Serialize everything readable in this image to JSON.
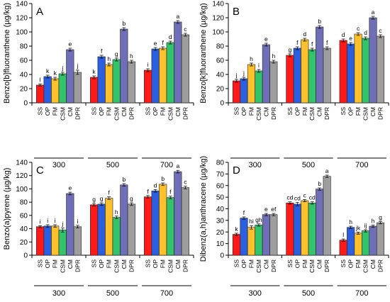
{
  "colors": {
    "SS": "#ff1a1a",
    "OP": "#2b5fe0",
    "FM": "#ffc12b",
    "CSM": "#33c46b",
    "CM": "#6f6fb8",
    "DPR": "#9e9e9e"
  },
  "chart_data": [
    {
      "type": "bar",
      "panel": "A",
      "ylabel": "Benzo[b]fluoranthene (µg/kg)",
      "ylim": [
        0,
        140
      ],
      "yticks": [
        0,
        20,
        40,
        60,
        80,
        100,
        120,
        140
      ],
      "categories": [
        "SS",
        "OP",
        "FM",
        "CSM",
        "CM",
        "DPR"
      ],
      "groups": [
        "300",
        "500",
        "700"
      ],
      "values": [
        [
          25,
          37,
          34,
          41,
          75,
          43
        ],
        [
          36,
          65,
          54,
          61,
          104,
          58
        ],
        [
          46,
          76,
          77,
          85,
          114,
          96
        ]
      ],
      "errors": [
        [
          1.5,
          2,
          2,
          2,
          2,
          3
        ],
        [
          2,
          2,
          2,
          2,
          2,
          2
        ],
        [
          2,
          2,
          2,
          2,
          2,
          2
        ]
      ],
      "letters": [
        [
          "l",
          "k",
          "k",
          "j",
          "e",
          "j"
        ],
        [
          "k",
          "f",
          "h",
          "g",
          "b",
          "h"
        ],
        [
          "i",
          "e",
          "f",
          "d",
          "a",
          "c"
        ]
      ]
    },
    {
      "type": "bar",
      "panel": "B",
      "ylabel": "Benzo[k]fluoranthene (µg/kg)",
      "ylim": [
        0,
        140
      ],
      "yticks": [
        0,
        20,
        40,
        60,
        80,
        100,
        120,
        140
      ],
      "categories": [
        "SS",
        "OP",
        "FM",
        "CSM",
        "CM",
        "DPR"
      ],
      "groups": [
        "300",
        "500",
        "700"
      ],
      "values": [
        [
          31,
          34,
          54,
          45,
          82,
          58
        ],
        [
          67,
          77,
          89,
          75,
          107,
          77
        ],
        [
          88,
          83,
          97,
          91,
          120,
          94
        ]
      ],
      "errors": [
        [
          2,
          2,
          2,
          2,
          2,
          2
        ],
        [
          2,
          2,
          2,
          2,
          2,
          2
        ],
        [
          2,
          2,
          2,
          2,
          2,
          2
        ]
      ],
      "letters": [
        [
          "j",
          "j",
          "h",
          "i",
          "e",
          "h"
        ],
        [
          "g",
          "f",
          "d",
          "f",
          "b",
          "f"
        ],
        [
          "d",
          "e",
          "c",
          "d",
          "a",
          "c"
        ]
      ]
    },
    {
      "type": "bar",
      "panel": "C",
      "ylabel": "Benzo(a)pyrene (µg/kg)",
      "ylim": [
        0,
        140
      ],
      "yticks": [
        0,
        20,
        40,
        60,
        80,
        100,
        120,
        140
      ],
      "categories": [
        "SS",
        "OP",
        "FM",
        "CSM",
        "CM",
        "DPR"
      ],
      "groups": [
        "300",
        "500",
        "700"
      ],
      "values": [
        [
          43,
          44,
          44,
          38,
          93,
          43
        ],
        [
          76,
          77,
          86,
          57,
          106,
          77
        ],
        [
          88,
          97,
          107,
          87,
          126,
          102
        ]
      ],
      "errors": [
        [
          1.5,
          2,
          2,
          3,
          2,
          2
        ],
        [
          2,
          2,
          2,
          2,
          2,
          2
        ],
        [
          2,
          2,
          2,
          2,
          2,
          2
        ]
      ],
      "letters": [
        [
          "i",
          "i",
          "i",
          "j",
          "e",
          "i"
        ],
        [
          "g",
          "g",
          "f",
          "h",
          "b",
          "g"
        ],
        [
          "f",
          "d",
          "b",
          "f",
          "a",
          "c"
        ]
      ]
    },
    {
      "type": "bar",
      "panel": "D",
      "ylabel": "Dibenz(a,h)anthracene (µg/kg)",
      "ylim": [
        0,
        80
      ],
      "yticks": [
        0,
        10,
        20,
        30,
        40,
        50,
        60,
        70,
        80
      ],
      "categories": [
        "SS",
        "OP",
        "FM",
        "CSM",
        "CM",
        "DPR"
      ],
      "groups": [
        "300",
        "500",
        "700"
      ],
      "values": [
        [
          18,
          32,
          24,
          26,
          35,
          35
        ],
        [
          45,
          44,
          47,
          45,
          57,
          68
        ],
        [
          13,
          24,
          19,
          21,
          25,
          28
        ]
      ],
      "errors": [
        [
          1,
          1,
          1.5,
          1,
          1,
          1
        ],
        [
          1,
          1.5,
          1,
          1,
          1,
          1
        ],
        [
          1,
          1,
          1,
          1,
          1,
          1
        ]
      ],
      "letters": [
        [
          "k",
          "f",
          "hi",
          "gh",
          "e",
          "ef"
        ],
        [
          "cd",
          "cd",
          "c",
          "cd",
          "b",
          "a"
        ],
        [
          "l",
          "h",
          "jk",
          "ij",
          "h",
          "g"
        ]
      ]
    }
  ]
}
